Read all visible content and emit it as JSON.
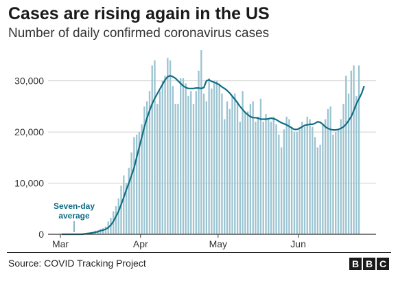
{
  "title": "Cases are rising again in the US",
  "subtitle": "Number of daily confirmed coronavirus cases",
  "source": "Source: COVID Tracking Project",
  "logo": [
    "B",
    "B",
    "C"
  ],
  "annotation": [
    "Seven-day",
    "average"
  ],
  "colors": {
    "bars": "#9cc4d1",
    "line": "#0f6d85",
    "grid": "#cccccc",
    "axis": "#333333",
    "annotation": "#0f6d85"
  },
  "chart_data": {
    "type": "bar",
    "title": "Cases are rising again in the US",
    "subtitle": "Number of daily confirmed coronavirus cases",
    "xlabel": "",
    "ylabel": "",
    "ylim": [
      0,
      36000
    ],
    "yticks": [
      0,
      10000,
      20000,
      30000
    ],
    "ytick_labels": [
      "0",
      "10,000",
      "20,000",
      "30,000"
    ],
    "xtick_labels": [
      {
        "label": "Mar",
        "day_index": 0
      },
      {
        "label": "Apr",
        "day_index": 31
      },
      {
        "label": "May",
        "day_index": 61
      },
      {
        "label": "Jun",
        "day_index": 92
      }
    ],
    "grid": true,
    "series": [
      {
        "kind": "bar",
        "values": [
          0,
          0,
          0,
          0,
          0,
          0,
          100,
          150,
          200,
          250,
          300,
          400,
          500,
          700,
          800,
          1000,
          1200,
          1500,
          2500,
          3200,
          4500,
          5500,
          7000,
          9500,
          11500,
          10000,
          13000,
          16000,
          19000,
          19500,
          20000,
          21500,
          25000,
          26000,
          28000,
          33000,
          34000,
          25500,
          28000,
          30000,
          31000,
          34500,
          34000,
          29000,
          25500,
          25500,
          30500,
          30500,
          29500,
          27000,
          28000,
          25500,
          28000,
          32000,
          36000,
          27500,
          26000,
          30500,
          28500,
          30000,
          30000,
          29500,
          27500,
          22500,
          26000,
          24500,
          27000,
          27500,
          26000,
          22000,
          28000,
          24000,
          24000,
          25500,
          26000,
          22000,
          23000,
          26500,
          22000,
          23500,
          22500,
          22000,
          23000,
          21500,
          19500,
          17000,
          20500,
          23000,
          22500,
          21000,
          20000,
          20000,
          21000,
          22000,
          21000,
          23000,
          22500,
          21000,
          19000,
          17000,
          17500,
          21500,
          22500,
          24500,
          25000,
          19500,
          20000,
          20500,
          22500,
          25500,
          31000,
          27500,
          32000,
          33000,
          27000,
          33000
        ]
      },
      {
        "kind": "line",
        "name": "Seven-day average",
        "values": [
          0,
          0,
          0,
          0,
          0,
          0,
          0,
          0,
          0,
          100,
          150,
          200,
          300,
          400,
          500,
          700,
          800,
          1000,
          1300,
          1800,
          2500,
          3500,
          4500,
          5800,
          7200,
          8700,
          10000,
          11500,
          13000,
          15000,
          17000,
          19000,
          21000,
          22700,
          24200,
          25500,
          26600,
          27500,
          28400,
          29300,
          30200,
          30800,
          31000,
          30800,
          30500,
          30000,
          29500,
          29000,
          28700,
          28500,
          28500,
          28500,
          28600,
          28600,
          28500,
          28700,
          30000,
          30200,
          29900,
          29700,
          29500,
          29200,
          28800,
          28500,
          28100,
          27600,
          27000,
          26400,
          25700,
          25000,
          24400,
          23800,
          23400,
          23000,
          22800,
          22800,
          22700,
          22500,
          22500,
          22500,
          22600,
          22700,
          22600,
          22400,
          22100,
          21800,
          21600,
          21400,
          21100,
          20800,
          20500,
          20500,
          20700,
          21000,
          21300,
          21400,
          21500,
          21500,
          21700,
          22000,
          21900,
          21500,
          21000,
          20700,
          20500,
          20400,
          20400,
          20500,
          20700,
          21000,
          21500,
          22200,
          23000,
          24200,
          25500,
          26500,
          27500,
          29000
        ]
      }
    ]
  }
}
